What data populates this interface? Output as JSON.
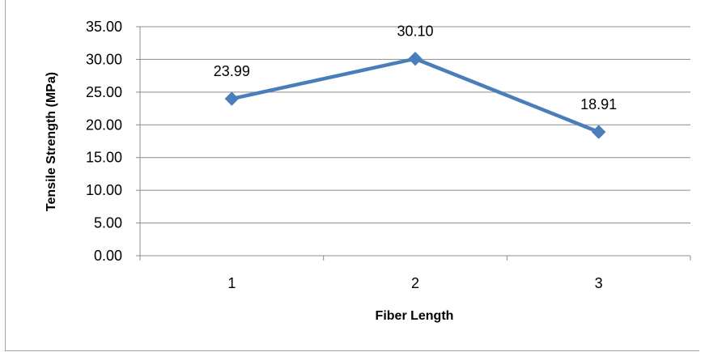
{
  "chart_data": {
    "type": "line",
    "title": "",
    "xlabel": "Fiber Length",
    "ylabel": "Tensile Strength  (MPa)",
    "categories": [
      "1",
      "2",
      "3"
    ],
    "series": [
      {
        "values": [
          23.99,
          30.1,
          18.91
        ]
      }
    ],
    "data_labels": [
      "23.99",
      "30.10",
      "18.91"
    ],
    "y_ticks": [
      "0.00",
      "5.00",
      "10.00",
      "15.00",
      "20.00",
      "25.00",
      "30.00",
      "35.00"
    ],
    "ylim": [
      0,
      35
    ],
    "grid": true,
    "legend": "none",
    "marker": "diamond",
    "line_color": "#4a7ebb",
    "grid_color": "#8c8c8c"
  }
}
